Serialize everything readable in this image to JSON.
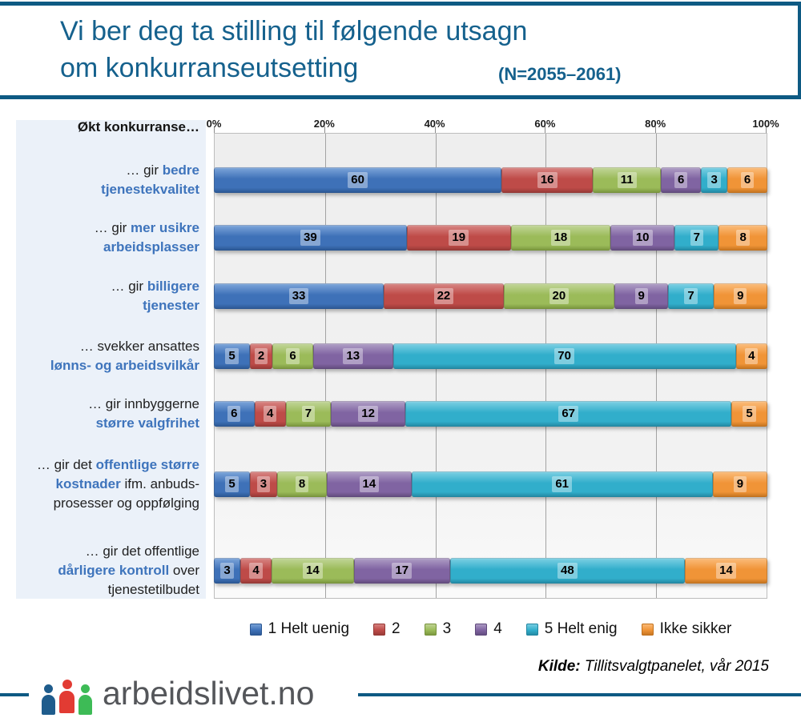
{
  "header": {
    "title_line1": "Vi ber deg ta stilling til følgende utsagn",
    "title_line2": "om konkurranseutsetting",
    "sample_note": "(N=2055–2061)",
    "accent_color": "#0E5A83",
    "title_color": "#15618D"
  },
  "chart_data": {
    "type": "bar",
    "stacked": true,
    "orientation": "horizontal",
    "units": "percent",
    "axis_title": "Økt konkurranse…",
    "x_ticks": [
      "0%",
      "20%",
      "40%",
      "60%",
      "80%",
      "100%"
    ],
    "xlim": [
      0,
      100
    ],
    "grid": true,
    "legend_position": "bottom",
    "categories": [
      "… gir bedre tjenestekvalitet",
      "… gir mer usikre arbeidsplasser",
      "… gir billigere tjenester",
      "… svekker ansattes lønns- og arbeidsvilkår",
      "… gir innbyggerne større valgfrihet",
      "… gir det offentlige større kostnader ifm. anbuds-prosesser og oppfølging",
      "… gir det offentlige dårligere kontroll over tjenestetilbudet"
    ],
    "category_labels_rich": [
      [
        [
          {
            "t": "… gir ",
            "s": "k"
          },
          {
            "t": "bedre",
            "s": "b"
          }
        ],
        [
          {
            "t": "tjenestekvalitet",
            "s": "b"
          }
        ]
      ],
      [
        [
          {
            "t": "… gir ",
            "s": "k"
          },
          {
            "t": "mer usikre",
            "s": "b"
          }
        ],
        [
          {
            "t": "arbeidsplasser",
            "s": "b"
          }
        ]
      ],
      [
        [
          {
            "t": "… gir ",
            "s": "k"
          },
          {
            "t": "billigere",
            "s": "b"
          }
        ],
        [
          {
            "t": "tjenester",
            "s": "b"
          }
        ]
      ],
      [
        [
          {
            "t": "… svekker ansattes",
            "s": "k"
          }
        ],
        [
          {
            "t": "lønns- og arbeidsvilkår",
            "s": "b"
          }
        ]
      ],
      [
        [
          {
            "t": "… gir innbyggerne",
            "s": "k"
          }
        ],
        [
          {
            "t": "større valgfrihet",
            "s": "b"
          }
        ]
      ],
      [
        [
          {
            "t": "… gir det ",
            "s": "k"
          },
          {
            "t": "offentlige større",
            "s": "b"
          }
        ],
        [
          {
            "t": "kostnader",
            "s": "b"
          },
          {
            "t": " ifm. anbuds-",
            "s": "k"
          }
        ],
        [
          {
            "t": "prosesser og oppfølging",
            "s": "k"
          }
        ]
      ],
      [
        [
          {
            "t": "… gir det offentlige",
            "s": "k"
          }
        ],
        [
          {
            "t": "dårligere kontroll",
            "s": "b"
          },
          {
            "t": " over",
            "s": "k"
          }
        ],
        [
          {
            "t": "tjenestetilbudet",
            "s": "k"
          }
        ]
      ]
    ],
    "series": [
      {
        "name": "1 Helt uenig",
        "color": "#3E71B8",
        "light": "#7FA7DB",
        "dark": "#2B5691",
        "values": [
          60,
          39,
          33,
          5,
          6,
          5,
          3
        ]
      },
      {
        "name": "2",
        "color": "#BE4B48",
        "light": "#D98886",
        "dark": "#953936",
        "values": [
          16,
          19,
          22,
          2,
          4,
          3,
          4
        ]
      },
      {
        "name": "3",
        "color": "#9BBB59",
        "light": "#C3D69B",
        "dark": "#77933C",
        "values": [
          11,
          18,
          20,
          6,
          7,
          8,
          14
        ]
      },
      {
        "name": "4",
        "color": "#8064A2",
        "light": "#B1A0C7",
        "dark": "#604A7B",
        "values": [
          6,
          10,
          9,
          13,
          12,
          14,
          17
        ]
      },
      {
        "name": "5 Helt enig",
        "color": "#31AECB",
        "light": "#7FD1E4",
        "dark": "#2386A0",
        "values": [
          3,
          7,
          7,
          70,
          67,
          61,
          48
        ]
      },
      {
        "name": "Ikke sikker",
        "color": "#F09437",
        "light": "#FBBE7E",
        "dark": "#C1721F",
        "values": [
          6,
          8,
          9,
          4,
          5,
          9,
          14
        ]
      }
    ]
  },
  "footer": {
    "source_label": "Kilde:",
    "source_text": " Tillitsvalgtpanelet, vår 2015",
    "logo_text": "arbeidslivet.no",
    "logo_colors": {
      "blue": "#1F5C8C",
      "red": "#E23B33",
      "green": "#3DBB56"
    }
  }
}
